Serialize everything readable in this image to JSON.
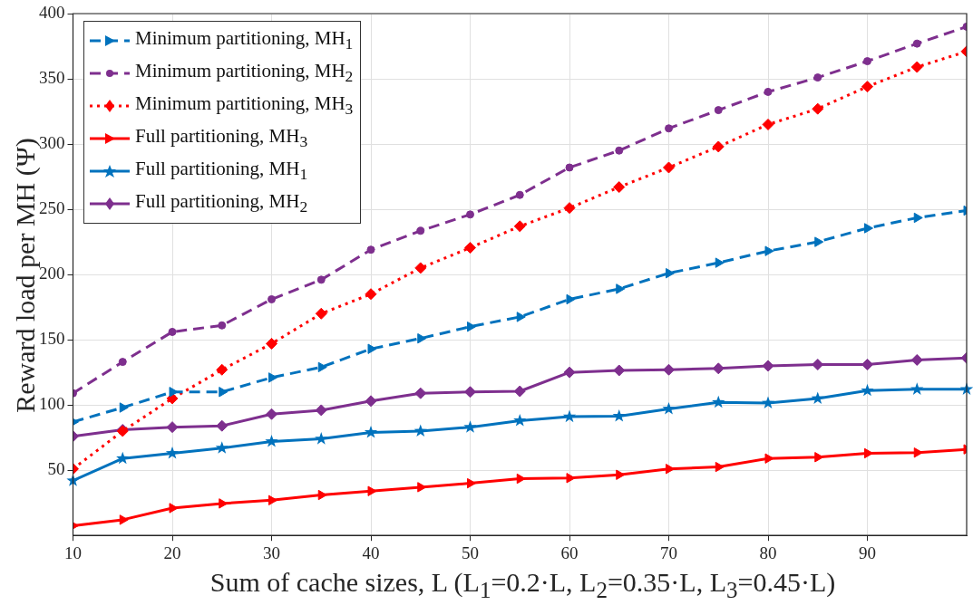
{
  "chart_data": {
    "type": "line",
    "xlabel": "Sum of cache sizes, L (L$_{1}$=0.2·L, L$_{2}$=0.35·L, L$_{3}$=0.45·L)",
    "ylabel": "Reward load per MH (Ψ)",
    "x": [
      10,
      15,
      20,
      25,
      30,
      35,
      40,
      45,
      50,
      55,
      60,
      65,
      70,
      75,
      80,
      85,
      90,
      95,
      100
    ],
    "xlim": [
      10,
      100
    ],
    "xticks": [
      10,
      20,
      30,
      40,
      50,
      60,
      70,
      80,
      90
    ],
    "ylim": [
      0,
      400
    ],
    "yticks": [
      50,
      100,
      150,
      200,
      250,
      300,
      350,
      400
    ],
    "grid": true,
    "legend": "top left",
    "series": [
      {
        "name": "Minimum partitioning, MH$_{1}$",
        "color": "#0072bd",
        "marker": "triangle",
        "line_style": "dashed",
        "values": [
          87,
          98,
          110,
          110,
          121,
          129,
          143,
          151,
          160,
          167.5,
          181,
          189,
          201,
          209,
          218,
          225,
          235.5,
          243.5,
          249
        ]
      },
      {
        "name": "Minimum partitioning, MH$_{2}$",
        "color": "#7e2f8e",
        "marker": "circle",
        "line_style": "dashed",
        "values": [
          109,
          133,
          156,
          161,
          181,
          196,
          219,
          233.5,
          246,
          261,
          282,
          295,
          312,
          326,
          340,
          351,
          363.5,
          377,
          390
        ]
      },
      {
        "name": "Minimum partitioning, MH$_{3}$",
        "color": "#ff0000",
        "marker": "diamond",
        "line_style": "dotted",
        "values": [
          51,
          80,
          105,
          127,
          147,
          170,
          185,
          205,
          220.5,
          237,
          251,
          267,
          282,
          298,
          315,
          327,
          344,
          359,
          371
        ]
      },
      {
        "name": "Full partitioning, MH$_{3}$",
        "color": "#ff0000",
        "marker": "triangle",
        "line_style": "solid",
        "values": [
          7.5,
          12,
          21,
          24.5,
          27,
          31,
          34,
          37,
          40,
          43.5,
          44,
          46.5,
          51,
          52.5,
          59,
          60,
          63,
          63.5,
          66
        ]
      },
      {
        "name": "Full partitioning, MH$_{1}$",
        "color": "#0072bd",
        "marker": "star",
        "line_style": "solid",
        "values": [
          42,
          59,
          63,
          67,
          72,
          74,
          79,
          80,
          83,
          88,
          91,
          91.5,
          97,
          102,
          101.5,
          105,
          111,
          112,
          112
        ]
      },
      {
        "name": "Full partitioning, MH$_{2}$",
        "color": "#7e2f8e",
        "marker": "diamond",
        "line_style": "solid",
        "values": [
          76,
          81,
          83,
          84,
          93,
          96,
          103,
          109,
          110,
          110.5,
          125,
          126.5,
          127,
          128,
          130,
          131,
          131,
          134.5,
          136
        ]
      }
    ]
  }
}
